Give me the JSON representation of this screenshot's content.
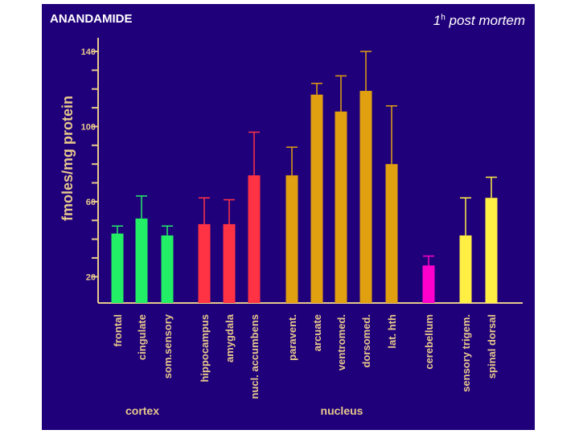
{
  "header": {
    "title_left": "ANANDAMIDE",
    "title_right_num": "1",
    "title_right_sup": "h",
    "title_right_text": " post mortem"
  },
  "chart_data": {
    "type": "bar",
    "title": "ANANDAMIDE",
    "subtitle": "1h post mortem",
    "ylabel": "fmoles/mg protein",
    "ylim": [
      6,
      146
    ],
    "yticks": [
      20,
      60,
      100,
      140
    ],
    "categories": [
      "frontal",
      "cingulate",
      "som.sensory",
      "hippocampus",
      "amygdala",
      "nucl. accumbens",
      "paravent.",
      "arcuate",
      "ventromed.",
      "dorsomed.",
      "lat. hth",
      "cerebellum",
      "sensory trigem.",
      "spinal dorsal"
    ],
    "values": [
      43,
      51,
      42,
      48,
      48,
      74,
      74,
      117,
      108,
      119,
      80,
      26,
      42,
      62
    ],
    "error_upper": [
      47,
      63,
      47,
      62,
      61,
      97,
      89,
      123,
      127,
      140,
      111,
      31,
      62,
      73
    ],
    "colors": [
      "#22ee66",
      "#22ee66",
      "#22ee66",
      "#ff3344",
      "#ff3344",
      "#ff3344",
      "#e0a010",
      "#e0a010",
      "#e0a010",
      "#e0a010",
      "#e0a010",
      "#ff00cc",
      "#ffee44",
      "#ffee44"
    ],
    "groups": [
      {
        "name": "cortex",
        "from": 0,
        "to": 2
      },
      {
        "name": "nucleus",
        "from": 6,
        "to": 10
      }
    ]
  }
}
